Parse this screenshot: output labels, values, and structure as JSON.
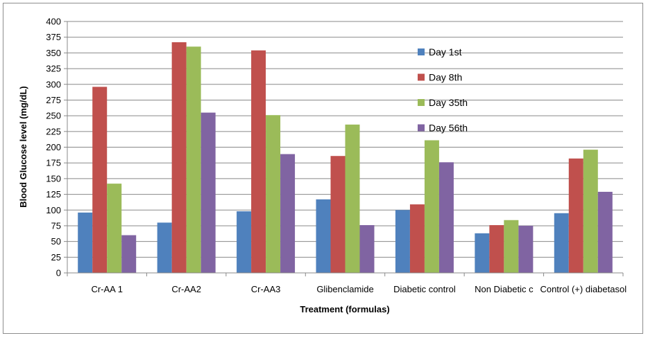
{
  "chart_data": {
    "type": "bar",
    "title": "",
    "xlabel": "Treatment (formulas)",
    "ylabel": "Blood Glucose level (mg/dL)",
    "ylim": [
      0,
      400
    ],
    "yticks": [
      "0",
      "25",
      "50",
      "75",
      "100",
      "125",
      "150",
      "175",
      "200",
      "225",
      "250",
      "275",
      "300",
      "325",
      "350",
      "375",
      "400"
    ],
    "grid": true,
    "legend_position": "top-right inside plot",
    "categories": [
      "Cr-AA 1",
      "Cr-AA2",
      "Cr-AA3",
      "Glibenclamide",
      "Diabetic  control",
      "Non Diabetic  c",
      "Control (+) diabetasol"
    ],
    "series": [
      {
        "name": "Day 1st",
        "color": "#4f81bd",
        "values": [
          96,
          80,
          98,
          117,
          100,
          63,
          95
        ]
      },
      {
        "name": "Day 8th",
        "color": "#c0504d",
        "values": [
          296,
          367,
          354,
          186,
          109,
          76,
          182
        ]
      },
      {
        "name": "Day 35th",
        "color": "#9bbb59",
        "values": [
          142,
          360,
          251,
          236,
          211,
          84,
          196
        ]
      },
      {
        "name": "Day 56th",
        "color": "#8064a2",
        "values": [
          60,
          255,
          189,
          76,
          176,
          75,
          129
        ]
      }
    ]
  }
}
